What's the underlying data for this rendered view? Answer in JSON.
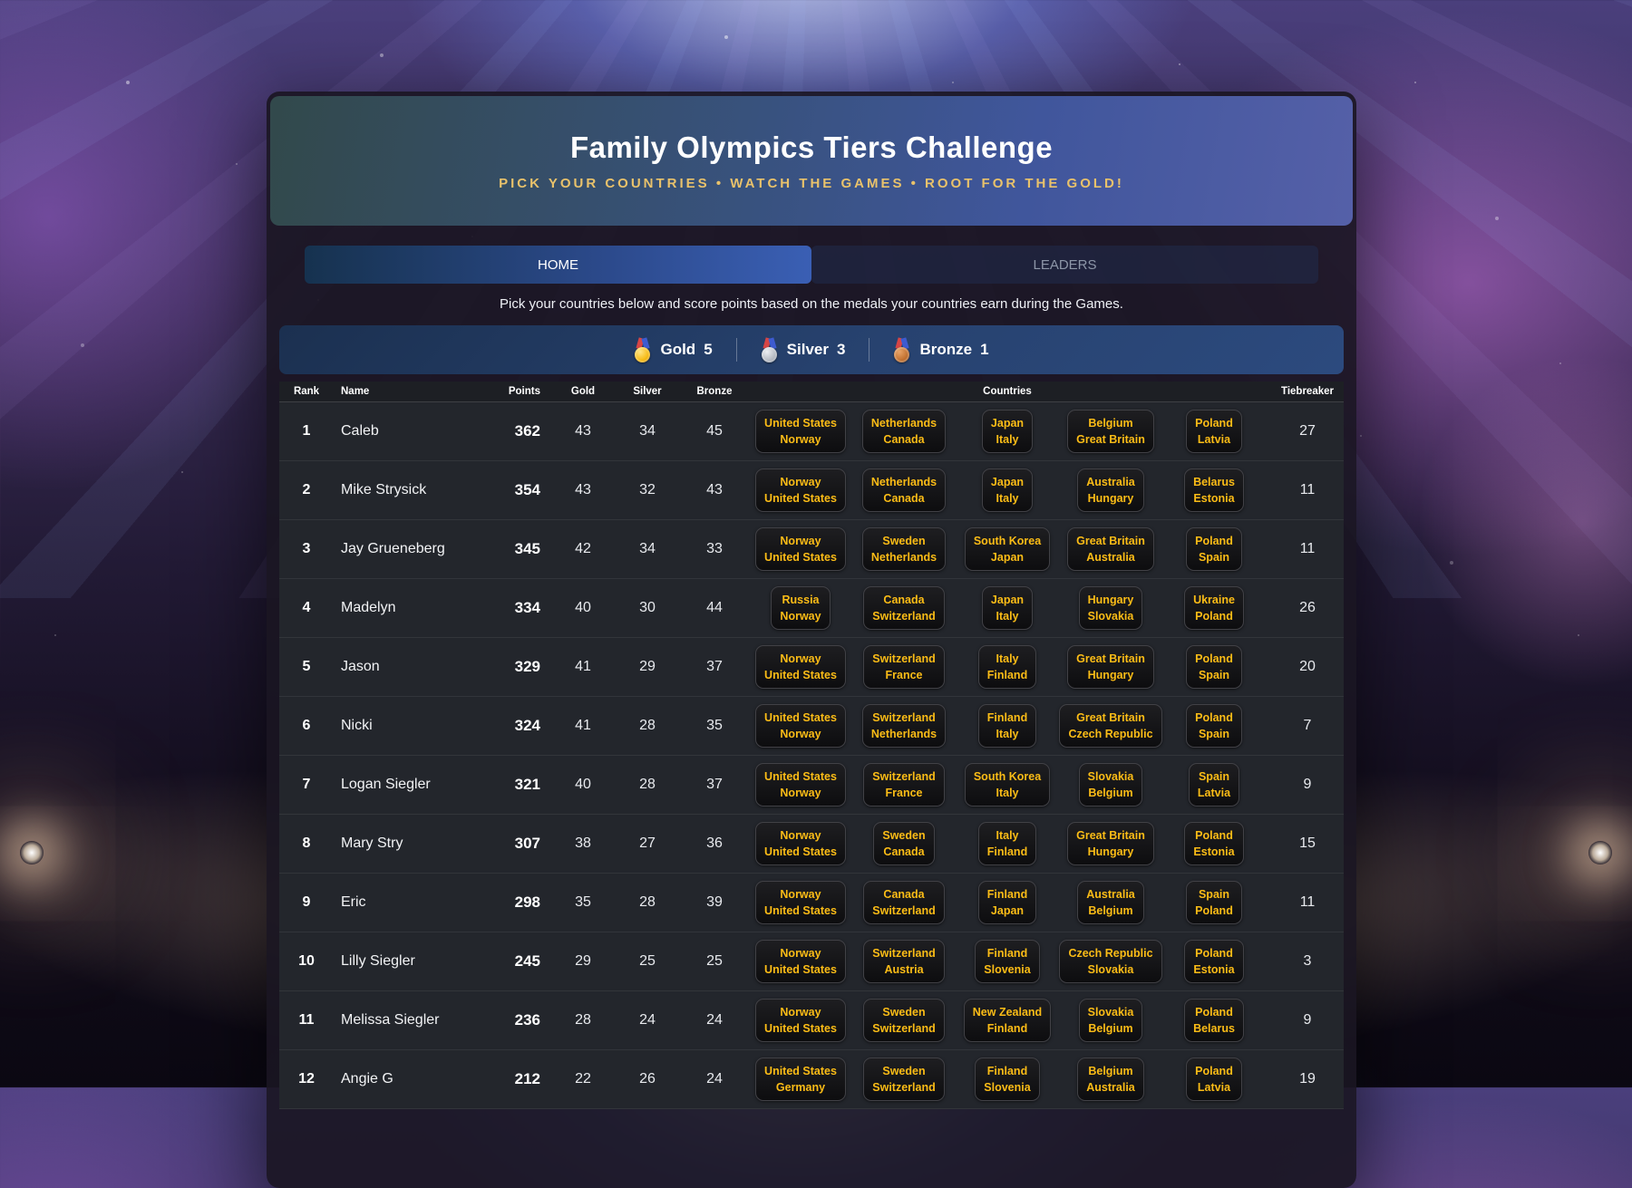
{
  "header": {
    "title": "Family Olympics Tiers Challenge",
    "subtitle": "PICK YOUR COUNTRIES • WATCH THE GAMES • ROOT FOR THE GOLD!"
  },
  "tabs": [
    {
      "label": "HOME",
      "active": true
    },
    {
      "label": "LEADERS",
      "active": false
    }
  ],
  "description": "Pick your countries below and score points based on the medals your countries earn during the Games.",
  "scoring": [
    {
      "medal": "gold-medal-icon",
      "label": "Gold",
      "points": "5"
    },
    {
      "medal": "silver-medal-icon",
      "label": "Silver",
      "points": "3"
    },
    {
      "medal": "bronze-medal-icon",
      "label": "Bronze",
      "points": "1"
    }
  ],
  "colors": {
    "chip_text": "#fbbc16",
    "subtitle_gold": "#e9c26b",
    "active_tab_blue": "#3a5fb4",
    "scoring_bar_navy": "#27426f",
    "table_bg": "#23262c"
  },
  "table": {
    "columns": [
      "Rank",
      "Name",
      "Points",
      "Gold",
      "Silver",
      "Bronze",
      "Countries",
      "Tiebreaker"
    ],
    "rows": [
      {
        "rank": "1",
        "name": "Caleb",
        "points": "362",
        "gold": "43",
        "silver": "34",
        "bronze": "45",
        "tiers": [
          [
            "United States",
            "Norway"
          ],
          [
            "Netherlands",
            "Canada"
          ],
          [
            "Japan",
            "Italy"
          ],
          [
            "Belgium",
            "Great Britain"
          ],
          [
            "Poland",
            "Latvia"
          ]
        ],
        "tiebreaker": "27"
      },
      {
        "rank": "2",
        "name": "Mike Strysick",
        "points": "354",
        "gold": "43",
        "silver": "32",
        "bronze": "43",
        "tiers": [
          [
            "Norway",
            "United States"
          ],
          [
            "Netherlands",
            "Canada"
          ],
          [
            "Japan",
            "Italy"
          ],
          [
            "Australia",
            "Hungary"
          ],
          [
            "Belarus",
            "Estonia"
          ]
        ],
        "tiebreaker": "11"
      },
      {
        "rank": "3",
        "name": "Jay Grueneberg",
        "points": "345",
        "gold": "42",
        "silver": "34",
        "bronze": "33",
        "tiers": [
          [
            "Norway",
            "United States"
          ],
          [
            "Sweden",
            "Netherlands"
          ],
          [
            "South Korea",
            "Japan"
          ],
          [
            "Great Britain",
            "Australia"
          ],
          [
            "Poland",
            "Spain"
          ]
        ],
        "tiebreaker": "11"
      },
      {
        "rank": "4",
        "name": "Madelyn",
        "points": "334",
        "gold": "40",
        "silver": "30",
        "bronze": "44",
        "tiers": [
          [
            "Russia",
            "Norway"
          ],
          [
            "Canada",
            "Switzerland"
          ],
          [
            "Japan",
            "Italy"
          ],
          [
            "Hungary",
            "Slovakia"
          ],
          [
            "Ukraine",
            "Poland"
          ]
        ],
        "tiebreaker": "26"
      },
      {
        "rank": "5",
        "name": "Jason",
        "points": "329",
        "gold": "41",
        "silver": "29",
        "bronze": "37",
        "tiers": [
          [
            "Norway",
            "United States"
          ],
          [
            "Switzerland",
            "France"
          ],
          [
            "Italy",
            "Finland"
          ],
          [
            "Great Britain",
            "Hungary"
          ],
          [
            "Poland",
            "Spain"
          ]
        ],
        "tiebreaker": "20"
      },
      {
        "rank": "6",
        "name": "Nicki",
        "points": "324",
        "gold": "41",
        "silver": "28",
        "bronze": "35",
        "tiers": [
          [
            "United States",
            "Norway"
          ],
          [
            "Switzerland",
            "Netherlands"
          ],
          [
            "Finland",
            "Italy"
          ],
          [
            "Great Britain",
            "Czech Republic"
          ],
          [
            "Poland",
            "Spain"
          ]
        ],
        "tiebreaker": "7"
      },
      {
        "rank": "7",
        "name": "Logan Siegler",
        "points": "321",
        "gold": "40",
        "silver": "28",
        "bronze": "37",
        "tiers": [
          [
            "United States",
            "Norway"
          ],
          [
            "Switzerland",
            "France"
          ],
          [
            "South Korea",
            "Italy"
          ],
          [
            "Slovakia",
            "Belgium"
          ],
          [
            "Spain",
            "Latvia"
          ]
        ],
        "tiebreaker": "9"
      },
      {
        "rank": "8",
        "name": "Mary Stry",
        "points": "307",
        "gold": "38",
        "silver": "27",
        "bronze": "36",
        "tiers": [
          [
            "Norway",
            "United States"
          ],
          [
            "Sweden",
            "Canada"
          ],
          [
            "Italy",
            "Finland"
          ],
          [
            "Great Britain",
            "Hungary"
          ],
          [
            "Poland",
            "Estonia"
          ]
        ],
        "tiebreaker": "15"
      },
      {
        "rank": "9",
        "name": "Eric",
        "points": "298",
        "gold": "35",
        "silver": "28",
        "bronze": "39",
        "tiers": [
          [
            "Norway",
            "United States"
          ],
          [
            "Canada",
            "Switzerland"
          ],
          [
            "Finland",
            "Japan"
          ],
          [
            "Australia",
            "Belgium"
          ],
          [
            "Spain",
            "Poland"
          ]
        ],
        "tiebreaker": "11"
      },
      {
        "rank": "10",
        "name": "Lilly Siegler",
        "points": "245",
        "gold": "29",
        "silver": "25",
        "bronze": "25",
        "tiers": [
          [
            "Norway",
            "United States"
          ],
          [
            "Switzerland",
            "Austria"
          ],
          [
            "Finland",
            "Slovenia"
          ],
          [
            "Czech Republic",
            "Slovakia"
          ],
          [
            "Poland",
            "Estonia"
          ]
        ],
        "tiebreaker": "3"
      },
      {
        "rank": "11",
        "name": "Melissa Siegler",
        "points": "236",
        "gold": "28",
        "silver": "24",
        "bronze": "24",
        "tiers": [
          [
            "Norway",
            "United States"
          ],
          [
            "Sweden",
            "Switzerland"
          ],
          [
            "New Zealand",
            "Finland"
          ],
          [
            "Slovakia",
            "Belgium"
          ],
          [
            "Poland",
            "Belarus"
          ]
        ],
        "tiebreaker": "9"
      },
      {
        "rank": "12",
        "name": "Angie G",
        "points": "212",
        "gold": "22",
        "silver": "26",
        "bronze": "24",
        "tiers": [
          [
            "United States",
            "Germany"
          ],
          [
            "Sweden",
            "Switzerland"
          ],
          [
            "Finland",
            "Slovenia"
          ],
          [
            "Belgium",
            "Australia"
          ],
          [
            "Poland",
            "Latvia"
          ]
        ],
        "tiebreaker": "19"
      }
    ]
  }
}
